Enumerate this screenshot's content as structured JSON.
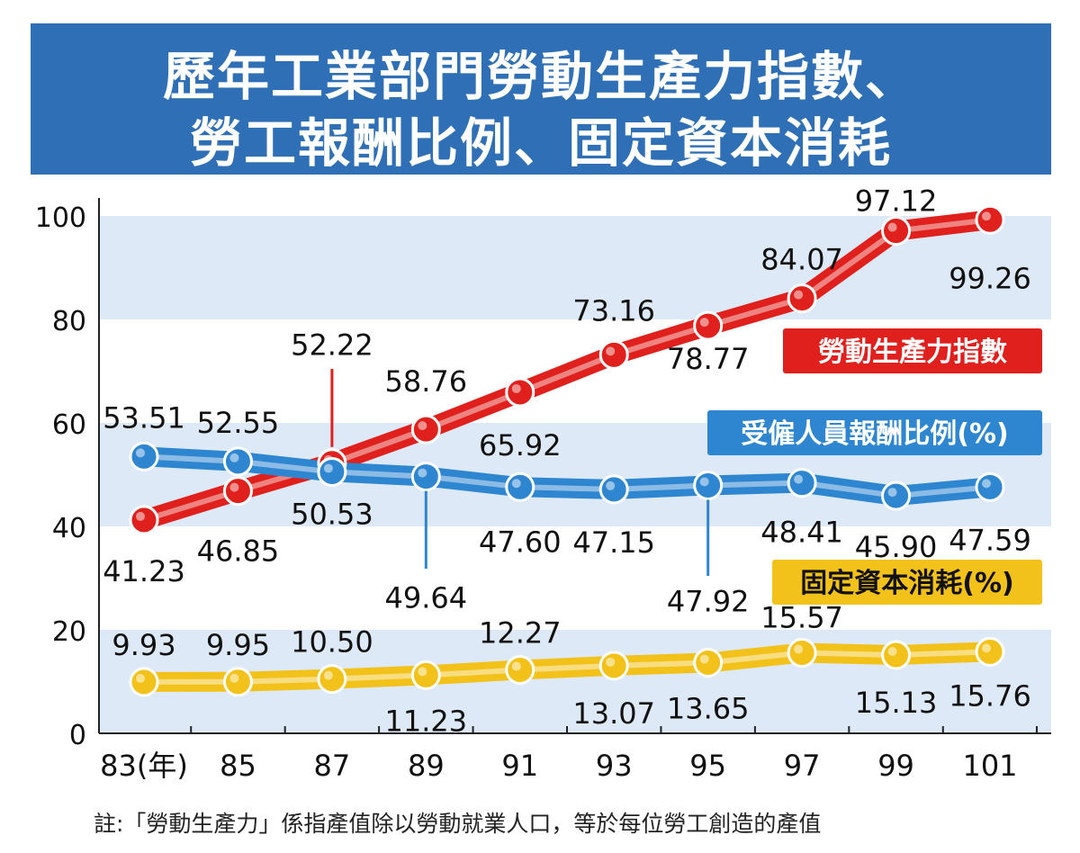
{
  "title_lines": [
    "歷年工業部門勞動生產力指數、",
    "勞工報酬比例、固定資本消耗"
  ],
  "note": "註:「勞動生產力」係指產值除以勞動就業人口，等於每位勞工創造的產值",
  "colors": {
    "title_bg": "#2f6fb5",
    "red": "#e0201c",
    "blue": "#2e86d0",
    "yellow": "#f3c21a",
    "band": "#dde9f6"
  },
  "chart_data": {
    "type": "line",
    "x": [
      "83(年)",
      "85",
      "87",
      "89",
      "91",
      "93",
      "95",
      "97",
      "99",
      "101"
    ],
    "ylim": [
      0,
      100
    ],
    "yticks": [
      "0",
      "20",
      "40",
      "60",
      "80",
      "100"
    ],
    "grid": "horizontal bands",
    "series": [
      {
        "name": "勞動生產力指數",
        "values": [
          41.23,
          46.85,
          52.22,
          58.76,
          65.92,
          73.16,
          78.77,
          84.07,
          97.12,
          99.26
        ],
        "labels": [
          "41.23",
          "46.85",
          "52.22",
          "58.76",
          "65.92",
          "73.16",
          "78.77",
          "84.07",
          "97.12",
          "99.26"
        ]
      },
      {
        "name": "受僱人員報酬比例(%)",
        "values": [
          53.51,
          52.55,
          50.53,
          49.64,
          47.6,
          47.15,
          47.92,
          48.41,
          45.9,
          47.59
        ],
        "labels": [
          "53.51",
          "52.55",
          "50.53",
          "49.64",
          "47.60",
          "47.15",
          "47.92",
          "48.41",
          "45.90",
          "47.59"
        ]
      },
      {
        "name": "固定資本消耗(%)",
        "values": [
          9.93,
          9.95,
          10.5,
          11.23,
          12.27,
          13.07,
          13.65,
          15.57,
          15.13,
          15.76
        ],
        "labels": [
          "9.93",
          "9.95",
          "10.50",
          "11.23",
          "12.27",
          "13.07",
          "13.65",
          "15.57",
          "15.13",
          "15.76"
        ]
      }
    ]
  }
}
